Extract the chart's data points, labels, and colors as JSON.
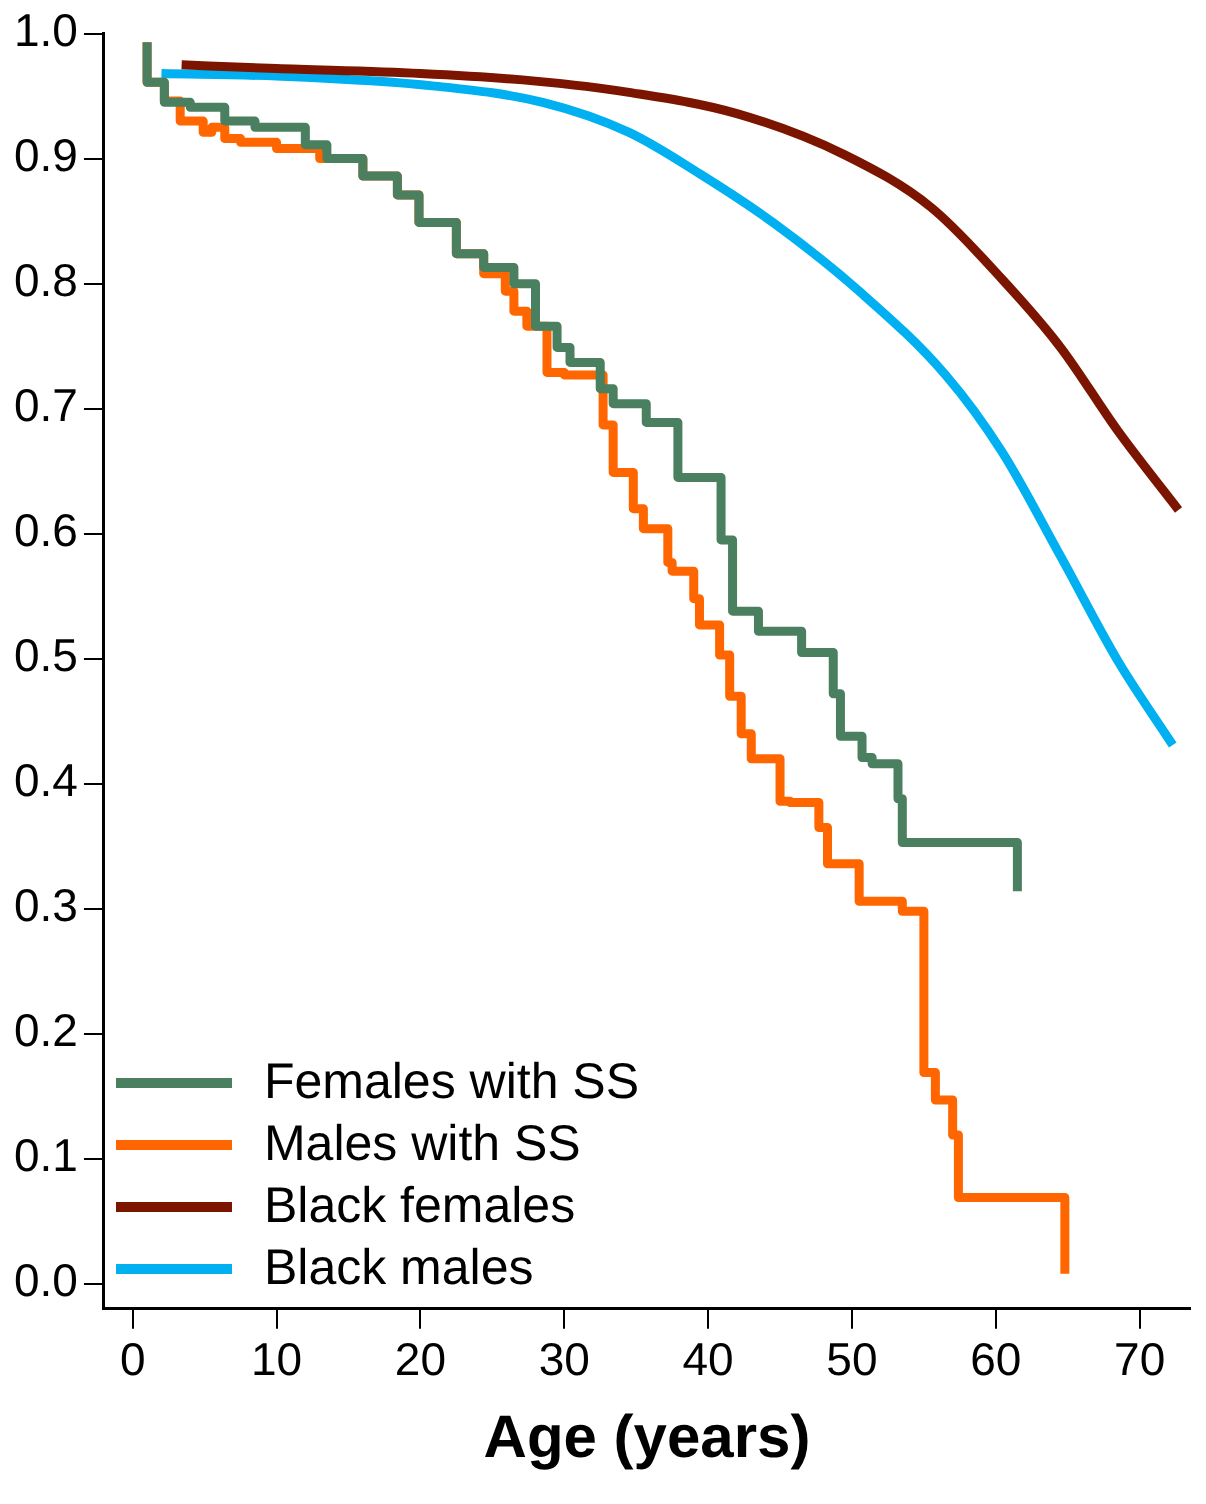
{
  "chart_data": {
    "type": "line",
    "xlabel": "Age (years)",
    "xlim": [
      -2,
      73.5
    ],
    "xticks": [
      0,
      10,
      20,
      30,
      40,
      50,
      60,
      70
    ],
    "ylim": [
      -0.02,
      1.0
    ],
    "yticks": [
      {
        "value": 0,
        "label": "0.0"
      },
      {
        "value": 0.1,
        "label": "0.1"
      },
      {
        "value": 0.2,
        "label": "0.2"
      },
      {
        "value": 0.3,
        "label": "0.3"
      },
      {
        "value": 0.4,
        "label": "0.4"
      },
      {
        "value": 0.5,
        "label": "0.5"
      },
      {
        "value": 0.6,
        "label": "0.6"
      },
      {
        "value": 0.7,
        "label": "0.7"
      },
      {
        "value": 0.8,
        "label": "0.8"
      },
      {
        "value": 0.9,
        "label": "0.9"
      },
      {
        "value": 1.0,
        "label": "1.0"
      }
    ],
    "grid": false,
    "legend": "bottom left",
    "marker": "none",
    "line_style": "solid",
    "series": [
      {
        "name": "Females with SS",
        "type": "step",
        "color": "#4a7f5f",
        "x": [
          1.0,
          2.2,
          4.0,
          6.4,
          8.5,
          12.0,
          13.5,
          16.0,
          18.4,
          19.9,
          22.5,
          24.4,
          26.5,
          28.0,
          29.5,
          30.4,
          32.5,
          33.4,
          35.7,
          37.9,
          40.9,
          41.7,
          43.5,
          46.5,
          48.7,
          49.2,
          50.7,
          51.4,
          53.2,
          53.5,
          55.0,
          61.5,
          61.5
        ],
        "values": [
          0.993,
          0.961,
          0.945,
          0.941,
          0.93,
          0.925,
          0.911,
          0.9,
          0.886,
          0.871,
          0.849,
          0.824,
          0.813,
          0.8,
          0.766,
          0.749,
          0.737,
          0.716,
          0.704,
          0.689,
          0.645,
          0.595,
          0.538,
          0.522,
          0.505,
          0.472,
          0.438,
          0.421,
          0.416,
          0.388,
          0.353,
          0.353,
          0.314
        ]
      },
      {
        "name": "Males with SS",
        "type": "step",
        "color": "#ff6600",
        "x": [
          1.0,
          2.2,
          3.3,
          4.9,
          5.5,
          6.4,
          7.5,
          10.0,
          13.0,
          16.0,
          18.4,
          19.9,
          22.5,
          24.4,
          25.9,
          26.5,
          27.4,
          28.8,
          30.0,
          32.7,
          33.4,
          34.8,
          35.5,
          37.2,
          37.5,
          39.0,
          39.4,
          40.8,
          41.5,
          42.3,
          43.0,
          45.0,
          45.7,
          47.7,
          48.3,
          50.5,
          53.5,
          55.0,
          55.0,
          55.8,
          57.0,
          57.4,
          58.8,
          64.8,
          64.8
        ],
        "values": [
          0.993,
          0.961,
          0.946,
          0.93,
          0.921,
          0.925,
          0.916,
          0.913,
          0.908,
          0.9,
          0.886,
          0.871,
          0.849,
          0.824,
          0.808,
          0.794,
          0.778,
          0.766,
          0.729,
          0.727,
          0.687,
          0.649,
          0.62,
          0.604,
          0.577,
          0.57,
          0.548,
          0.527,
          0.503,
          0.47,
          0.44,
          0.42,
          0.386,
          0.385,
          0.365,
          0.336,
          0.306,
          0.298,
          0.209,
          0.169,
          0.147,
          0.119,
          0.069,
          0.069,
          0.008
        ]
      },
      {
        "name": "Black females",
        "type": "line",
        "color": "#7b1500",
        "x": [
          3.4,
          10,
          20,
          28,
          34.5,
          42,
          49.5,
          55.5,
          60.4,
          64.5,
          68.5,
          72.7
        ],
        "values": [
          0.975,
          0.972,
          0.968,
          0.962,
          0.953,
          0.936,
          0.903,
          0.861,
          0.804,
          0.749,
          0.682,
          0.619
        ]
      },
      {
        "name": "Black males",
        "type": "line",
        "color": "#00b0f0",
        "x": [
          2.0,
          10,
          21,
          28.5,
          34.5,
          39.4,
          44.5,
          50.5,
          56.5,
          60.4,
          64.5,
          68.5,
          72.3
        ],
        "values": [
          0.968,
          0.966,
          0.958,
          0.945,
          0.921,
          0.888,
          0.849,
          0.794,
          0.727,
          0.666,
          0.582,
          0.498,
          0.431
        ]
      }
    ]
  }
}
